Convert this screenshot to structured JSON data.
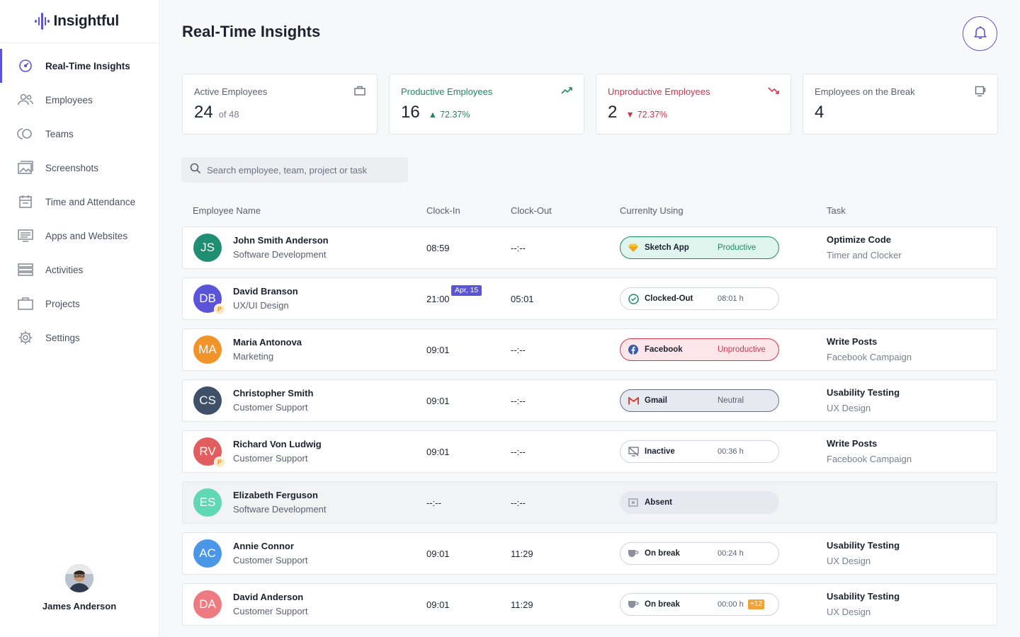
{
  "app": {
    "name": "Insightful",
    "accent": "#5b54d8"
  },
  "sidebar": {
    "items": [
      {
        "label": "Real-Time Insights",
        "icon": "gauge-icon",
        "active": true
      },
      {
        "label": "Employees",
        "icon": "users-icon"
      },
      {
        "label": "Teams",
        "icon": "teams-icon"
      },
      {
        "label": "Screenshots",
        "icon": "image-icon"
      },
      {
        "label": "Time and Attendance",
        "icon": "calendar-icon"
      },
      {
        "label": "Apps and Websites",
        "icon": "monitor-icon"
      },
      {
        "label": "Activities",
        "icon": "list-icon"
      },
      {
        "label": "Projects",
        "icon": "briefcase-icon"
      },
      {
        "label": "Settings",
        "icon": "gear-icon"
      }
    ],
    "user": {
      "name": "James Anderson"
    }
  },
  "header": {
    "title": "Real-Time Insights",
    "notification_icon": "bell-icon"
  },
  "stats": [
    {
      "title": "Active Employees",
      "value": "24",
      "sub": "of 48",
      "icon": "briefcase-icon"
    },
    {
      "title": "Productive Employees",
      "value": "16",
      "delta": "72.37%",
      "trend": "up",
      "icon": "trending-up-icon",
      "color": "#1c8a63"
    },
    {
      "title": "Unproductive Employees",
      "value": "2",
      "delta": "72.37%",
      "trend": "down",
      "icon": "trending-down-icon",
      "color": "#d0344d"
    },
    {
      "title": "Employees on the Break",
      "value": "4",
      "icon": "coffee-icon"
    }
  ],
  "search": {
    "placeholder": "Search employee, team, project or task"
  },
  "table": {
    "columns": [
      "Employee Name",
      "Clock-In",
      "Clock-Out",
      "Currenlty Using",
      "Task"
    ],
    "rows": [
      {
        "initials": "JS",
        "avatar_color": "#1f8e72",
        "name": "John Smith Anderson",
        "team": "Software Development",
        "clock_in": "08:59",
        "clock_out": "--:--",
        "app": "Sketch App",
        "app_icon": "sketch-icon",
        "status": "Productive",
        "task": "Optimize Code",
        "project": "Timer and Clocker"
      },
      {
        "initials": "DB",
        "avatar_color": "#5b54d8",
        "badge": "P",
        "name": "David Branson",
        "team": "UX/UI Design",
        "clock_in": "21:00",
        "date_tag": "Apr, 15",
        "clock_out": "05:01",
        "app": "Clocked-Out",
        "app_icon": "check-circle-icon",
        "time": "08:01 h",
        "task": "",
        "project": ""
      },
      {
        "initials": "MA",
        "avatar_color": "#f0942a",
        "name": "Maria Antonova",
        "team": "Marketing",
        "clock_in": "09:01",
        "clock_out": "--:--",
        "app": "Facebook",
        "app_icon": "facebook-icon",
        "status": "Unproductive",
        "task": "Write Posts",
        "project": "Facebook Campaign"
      },
      {
        "initials": "CS",
        "avatar_color": "#3f5069",
        "name": "Christopher Smith",
        "team": "Customer Support",
        "clock_in": "09:01",
        "clock_out": "--:--",
        "app": "Gmail",
        "app_icon": "gmail-icon",
        "status": "Neutral",
        "task": "Usability Testing",
        "project": "UX Design"
      },
      {
        "initials": "RV",
        "avatar_color": "#e25d5d",
        "badge": "P",
        "name": "Richard Von Ludwig",
        "team": "Customer Support",
        "clock_in": "09:01",
        "clock_out": "--:--",
        "app": "Inactive",
        "app_icon": "inactive-icon",
        "time": "00:36 h",
        "task": "Write Posts",
        "project": "Facebook Campaign"
      },
      {
        "initials": "ES",
        "avatar_color": "#5fd8b3",
        "name": "Elizabeth Ferguson",
        "team": "Software Development",
        "clock_in": "--:--",
        "clock_out": "--:--",
        "app": "Absent",
        "app_icon": "absent-icon",
        "task": "",
        "project": ""
      },
      {
        "initials": "AC",
        "avatar_color": "#4a97e8",
        "name": "Annie Connor",
        "team": "Customer Support",
        "clock_in": "09:01",
        "clock_out": "11:29",
        "app": "On break",
        "app_icon": "coffee-cup-icon",
        "time": "00:24 h",
        "task": "Usability Testing",
        "project": "UX Design"
      },
      {
        "initials": "DA",
        "avatar_color": "#ef7b82",
        "name": "David Anderson",
        "team": "Customer Support",
        "clock_in": "09:01",
        "clock_out": "11:29",
        "app": "On break",
        "app_icon": "coffee-cup-icon",
        "time": "00:00 h",
        "extra": "+12",
        "task": "Usability Testing",
        "project": "UX Design"
      }
    ]
  }
}
